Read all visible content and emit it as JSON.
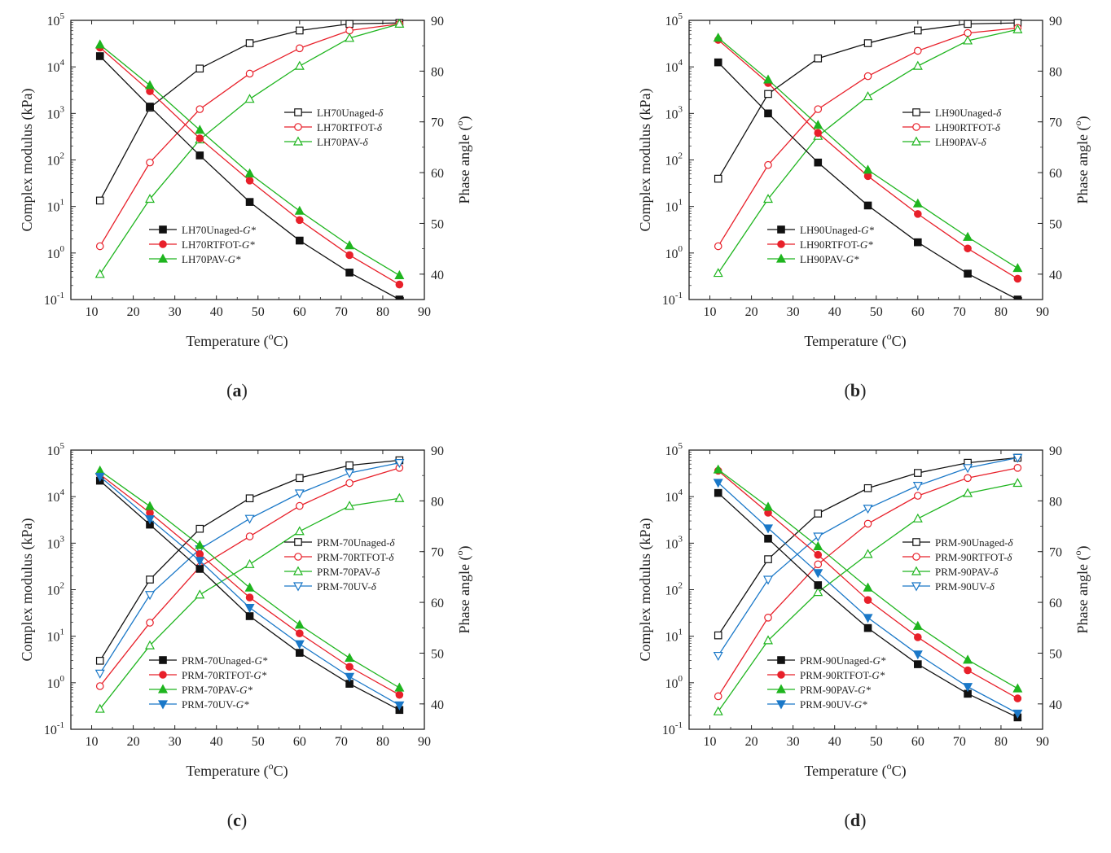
{
  "figure": {
    "panels_order": [
      "a",
      "b",
      "c",
      "d"
    ]
  },
  "colors": {
    "unaged": "#111111",
    "rtfot": "#e8202a",
    "pav": "#1fb51f",
    "uv": "#1a78c8"
  },
  "chart_data": [
    {
      "panel_label": "a",
      "type": "line",
      "xlabel": "Temperature (°C)",
      "xlabel_parts": [
        "Temperature (",
        "o",
        "C)"
      ],
      "ylabel_left": "Complex modulus (kPa)",
      "ylabel_right_parts": [
        "Phase angle (",
        "o",
        ")"
      ],
      "xlim": [
        5,
        90
      ],
      "x_ticks": [
        10,
        20,
        30,
        40,
        50,
        60,
        70,
        80,
        90
      ],
      "ylim_left": [
        0.1,
        100000
      ],
      "y_left_scale": "log",
      "y_left_ticks": [
        {
          "base": "10",
          "exp": "-1"
        },
        {
          "base": "10",
          "exp": "0"
        },
        {
          "base": "10",
          "exp": "1"
        },
        {
          "base": "10",
          "exp": "2"
        },
        {
          "base": "10",
          "exp": "3"
        },
        {
          "base": "10",
          "exp": "4"
        },
        {
          "base": "10",
          "exp": "5"
        }
      ],
      "ylim_right": [
        35,
        90
      ],
      "y_right_ticks": [
        40,
        50,
        60,
        70,
        80,
        90
      ],
      "x": [
        12,
        24,
        36,
        48,
        60,
        72,
        84
      ],
      "series_gstar": [
        {
          "name": "LH70Unaged-G*",
          "prefix": "LH70Unaged-",
          "sym": "G*",
          "color_key": "unaged",
          "marker": "square",
          "values": [
            17000,
            1400,
            125,
            12.5,
            1.85,
            0.38,
            0.1
          ]
        },
        {
          "name": "LH70RTFOT-G*",
          "prefix": "LH70RTFOT-",
          "sym": "G*",
          "color_key": "rtfot",
          "marker": "circle",
          "values": [
            26000,
            3000,
            290,
            36,
            5.1,
            0.9,
            0.21
          ]
        },
        {
          "name": "LH70PAV-G*",
          "prefix": "LH70PAV-",
          "sym": "G*",
          "color_key": "pav",
          "marker": "triangle",
          "values": [
            30000,
            4000,
            440,
            51,
            8,
            1.45,
            0.33
          ]
        }
      ],
      "series_delta": [
        {
          "name": "LH70Unaged-δ",
          "prefix": "LH70Unaged-",
          "sym": "δ",
          "color_key": "unaged",
          "marker": "square",
          "values": [
            54.5,
            72.8,
            80.5,
            85.5,
            88,
            89.3,
            89.5
          ]
        },
        {
          "name": "LH70RTFOT-δ",
          "prefix": "LH70RTFOT-",
          "sym": "δ",
          "color_key": "rtfot",
          "marker": "circle",
          "values": [
            45.5,
            62,
            72.5,
            79.5,
            84.5,
            88,
            89.3
          ]
        },
        {
          "name": "LH70PAV-δ",
          "prefix": "LH70PAV-",
          "sym": "δ",
          "color_key": "pav",
          "marker": "triangle",
          "values": [
            40,
            54.8,
            66.5,
            74.5,
            81,
            86.5,
            89.3
          ]
        }
      ],
      "legend_gstar_position": "lower-middle",
      "legend_delta_position": "upper-right"
    },
    {
      "panel_label": "b",
      "type": "line",
      "xlabel": "Temperature (°C)",
      "xlabel_parts": [
        "Temperature (",
        "o",
        "C)"
      ],
      "ylabel_left": "Complex modulus (kPa)",
      "ylabel_right_parts": [
        "Phase angle (",
        "o",
        ")"
      ],
      "xlim": [
        5,
        90
      ],
      "x_ticks": [
        10,
        20,
        30,
        40,
        50,
        60,
        70,
        80,
        90
      ],
      "ylim_left": [
        0.1,
        100000
      ],
      "y_left_scale": "log",
      "y_left_ticks": [
        {
          "base": "10",
          "exp": "-1"
        },
        {
          "base": "10",
          "exp": "0"
        },
        {
          "base": "10",
          "exp": "1"
        },
        {
          "base": "10",
          "exp": "2"
        },
        {
          "base": "10",
          "exp": "3"
        },
        {
          "base": "10",
          "exp": "4"
        },
        {
          "base": "10",
          "exp": "5"
        }
      ],
      "ylim_right": [
        35,
        90
      ],
      "y_right_ticks": [
        40,
        50,
        60,
        70,
        80,
        90
      ],
      "x": [
        12,
        24,
        36,
        48,
        60,
        72,
        84
      ],
      "series_gstar": [
        {
          "name": "LH90Unaged-G*",
          "prefix": "LH90Unaged-",
          "sym": "G*",
          "color_key": "unaged",
          "marker": "square",
          "values": [
            12500,
            1000,
            88,
            10.5,
            1.7,
            0.36,
            0.1
          ]
        },
        {
          "name": "LH90RTFOT-G*",
          "prefix": "LH90RTFOT-",
          "sym": "G*",
          "color_key": "rtfot",
          "marker": "circle",
          "values": [
            38000,
            4500,
            380,
            45,
            6.9,
            1.25,
            0.28
          ]
        },
        {
          "name": "LH90PAV-G*",
          "prefix": "LH90PAV-",
          "sym": "G*",
          "color_key": "pav",
          "marker": "triangle",
          "values": [
            42000,
            5300,
            560,
            61,
            11.5,
            2.2,
            0.47
          ]
        }
      ],
      "series_delta": [
        {
          "name": "LH90Unaged-δ",
          "prefix": "LH90Unaged-",
          "sym": "δ",
          "color_key": "unaged",
          "marker": "square",
          "values": [
            58.8,
            75.5,
            82.5,
            85.5,
            88,
            89.3,
            89.5
          ]
        },
        {
          "name": "LH90RTFOT-δ",
          "prefix": "LH90RTFOT-",
          "sym": "δ",
          "color_key": "rtfot",
          "marker": "circle",
          "values": [
            45.5,
            61.5,
            72.5,
            79,
            84,
            87.5,
            88.5
          ]
        },
        {
          "name": "LH90PAV-δ",
          "prefix": "LH90PAV-",
          "sym": "δ",
          "color_key": "pav",
          "marker": "triangle",
          "values": [
            40.2,
            54.8,
            67.2,
            75,
            81,
            86,
            88.2
          ]
        }
      ],
      "legend_gstar_position": "lower-middle",
      "legend_delta_position": "upper-right"
    },
    {
      "panel_label": "c",
      "type": "line",
      "xlabel": "Temperature (°C)",
      "xlabel_parts": [
        "Temperature (",
        "o",
        "C)"
      ],
      "ylabel_left": "Complex modulus (kPa)",
      "ylabel_right_parts": [
        "Phase angle (",
        "o",
        ")"
      ],
      "xlim": [
        5,
        90
      ],
      "x_ticks": [
        10,
        20,
        30,
        40,
        50,
        60,
        70,
        80,
        90
      ],
      "ylim_left": [
        0.1,
        100000
      ],
      "y_left_scale": "log",
      "y_left_ticks": [
        {
          "base": "10",
          "exp": "-1"
        },
        {
          "base": "10",
          "exp": "0"
        },
        {
          "base": "10",
          "exp": "1"
        },
        {
          "base": "10",
          "exp": "2"
        },
        {
          "base": "10",
          "exp": "3"
        },
        {
          "base": "10",
          "exp": "4"
        },
        {
          "base": "10",
          "exp": "5"
        }
      ],
      "ylim_right": [
        35,
        90
      ],
      "y_right_ticks": [
        40,
        50,
        60,
        70,
        80,
        90
      ],
      "x": [
        12,
        24,
        36,
        48,
        60,
        72,
        84
      ],
      "series_gstar": [
        {
          "name": "PRM-70Unaged-G*",
          "prefix": "PRM-70Unaged-",
          "sym": "G*",
          "color_key": "unaged",
          "marker": "square",
          "values": [
            22000,
            2500,
            280,
            27,
            4.4,
            0.95,
            0.26
          ]
        },
        {
          "name": "PRM-70RTFOT-G*",
          "prefix": "PRM-70RTFOT-",
          "sym": "G*",
          "color_key": "rtfot",
          "marker": "circle",
          "values": [
            30000,
            4500,
            580,
            68,
            11.5,
            2.2,
            0.55
          ]
        },
        {
          "name": "PRM-70PAV-G*",
          "prefix": "PRM-70PAV-",
          "sym": "G*",
          "color_key": "pav",
          "marker": "triangle",
          "values": [
            36000,
            6200,
            900,
            110,
            17.5,
            3.4,
            0.78
          ]
        },
        {
          "name": "PRM-70UV-G*",
          "prefix": "PRM-70UV-",
          "sym": "G*",
          "color_key": "uv",
          "marker": "triangle-down",
          "values": [
            27000,
            3300,
            420,
            41,
            6.8,
            1.35,
            0.33
          ]
        }
      ],
      "series_delta": [
        {
          "name": "PRM-70Unaged-δ",
          "prefix": "PRM-70Unaged-",
          "sym": "δ",
          "color_key": "unaged",
          "marker": "square",
          "values": [
            48.5,
            64.5,
            74.5,
            80.5,
            84.5,
            87,
            88
          ]
        },
        {
          "name": "PRM-70RTFOT-δ",
          "prefix": "PRM-70RTFOT-",
          "sym": "δ",
          "color_key": "rtfot",
          "marker": "circle",
          "values": [
            43.5,
            56,
            67,
            73,
            79,
            83.5,
            86.5
          ]
        },
        {
          "name": "PRM-70PAV-δ",
          "prefix": "PRM-70PAV-",
          "sym": "δ",
          "color_key": "pav",
          "marker": "triangle",
          "values": [
            39,
            51.5,
            61.5,
            67.5,
            74,
            79,
            80.5
          ]
        },
        {
          "name": "PRM-70UV-δ",
          "prefix": "PRM-70UV-",
          "sym": "δ",
          "color_key": "uv",
          "marker": "triangle-down",
          "values": [
            46,
            61.5,
            70.5,
            76.5,
            81.5,
            85.5,
            87.5
          ]
        }
      ],
      "legend_gstar_position": "lower-middle",
      "legend_delta_position": "middle-right"
    },
    {
      "panel_label": "d",
      "type": "line",
      "xlabel": "Temperature (°C)",
      "xlabel_parts": [
        "Temperature (",
        "o",
        "C)"
      ],
      "ylabel_left": "Complex modulus (kPa)",
      "ylabel_right_parts": [
        "Phase angle (",
        "o",
        ")"
      ],
      "xlim": [
        5,
        90
      ],
      "x_ticks": [
        10,
        20,
        30,
        40,
        50,
        60,
        70,
        80,
        90
      ],
      "ylim_left": [
        0.1,
        100000
      ],
      "y_left_scale": "log",
      "y_left_ticks": [
        {
          "base": "10",
          "exp": "-1"
        },
        {
          "base": "10",
          "exp": "0"
        },
        {
          "base": "10",
          "exp": "1"
        },
        {
          "base": "10",
          "exp": "2"
        },
        {
          "base": "10",
          "exp": "3"
        },
        {
          "base": "10",
          "exp": "4"
        },
        {
          "base": "10",
          "exp": "5"
        }
      ],
      "ylim_right": [
        35,
        90
      ],
      "y_right_ticks": [
        40,
        50,
        60,
        70,
        80,
        90
      ],
      "x": [
        12,
        24,
        36,
        48,
        60,
        72,
        84
      ],
      "series_gstar": [
        {
          "name": "PRM-90Unaged-G*",
          "prefix": "PRM-90Unaged-",
          "sym": "G*",
          "color_key": "unaged",
          "marker": "square",
          "values": [
            12000,
            1250,
            125,
            15,
            2.5,
            0.58,
            0.18
          ]
        },
        {
          "name": "PRM-90RTFOT-G*",
          "prefix": "PRM-90RTFOT-",
          "sym": "G*",
          "color_key": "rtfot",
          "marker": "circle",
          "values": [
            36000,
            4500,
            560,
            60,
            9.5,
            1.85,
            0.46
          ]
        },
        {
          "name": "PRM-90PAV-G*",
          "prefix": "PRM-90PAV-",
          "sym": "G*",
          "color_key": "pav",
          "marker": "triangle",
          "values": [
            38000,
            6000,
            850,
            110,
            16.5,
            3.1,
            0.75
          ]
        },
        {
          "name": "PRM-90UV-G*",
          "prefix": "PRM-90UV-",
          "sym": "G*",
          "color_key": "uv",
          "marker": "triangle-down",
          "values": [
            20000,
            2100,
            230,
            25,
            4.1,
            0.82,
            0.22
          ]
        }
      ],
      "series_delta": [
        {
          "name": "PRM-90Unaged-δ",
          "prefix": "PRM-90Unaged-",
          "sym": "δ",
          "color_key": "unaged",
          "marker": "square",
          "values": [
            53.5,
            68.5,
            77.5,
            82.5,
            85.5,
            87.5,
            88.5
          ]
        },
        {
          "name": "PRM-90RTFOT-δ",
          "prefix": "PRM-90RTFOT-",
          "sym": "δ",
          "color_key": "rtfot",
          "marker": "circle",
          "values": [
            41.5,
            57,
            67.5,
            75.5,
            81,
            84.5,
            86.5
          ]
        },
        {
          "name": "PRM-90PAV-δ",
          "prefix": "PRM-90PAV-",
          "sym": "δ",
          "color_key": "pav",
          "marker": "triangle",
          "values": [
            38.5,
            52.5,
            62,
            69.5,
            76.5,
            81.5,
            83.5
          ]
        },
        {
          "name": "PRM-90UV-δ",
          "prefix": "PRM-90UV-",
          "sym": "δ",
          "color_key": "uv",
          "marker": "triangle-down",
          "values": [
            49.5,
            64.5,
            73,
            78.5,
            83,
            86.5,
            88.5
          ]
        }
      ],
      "legend_gstar_position": "lower-middle",
      "legend_delta_position": "middle-right"
    }
  ]
}
